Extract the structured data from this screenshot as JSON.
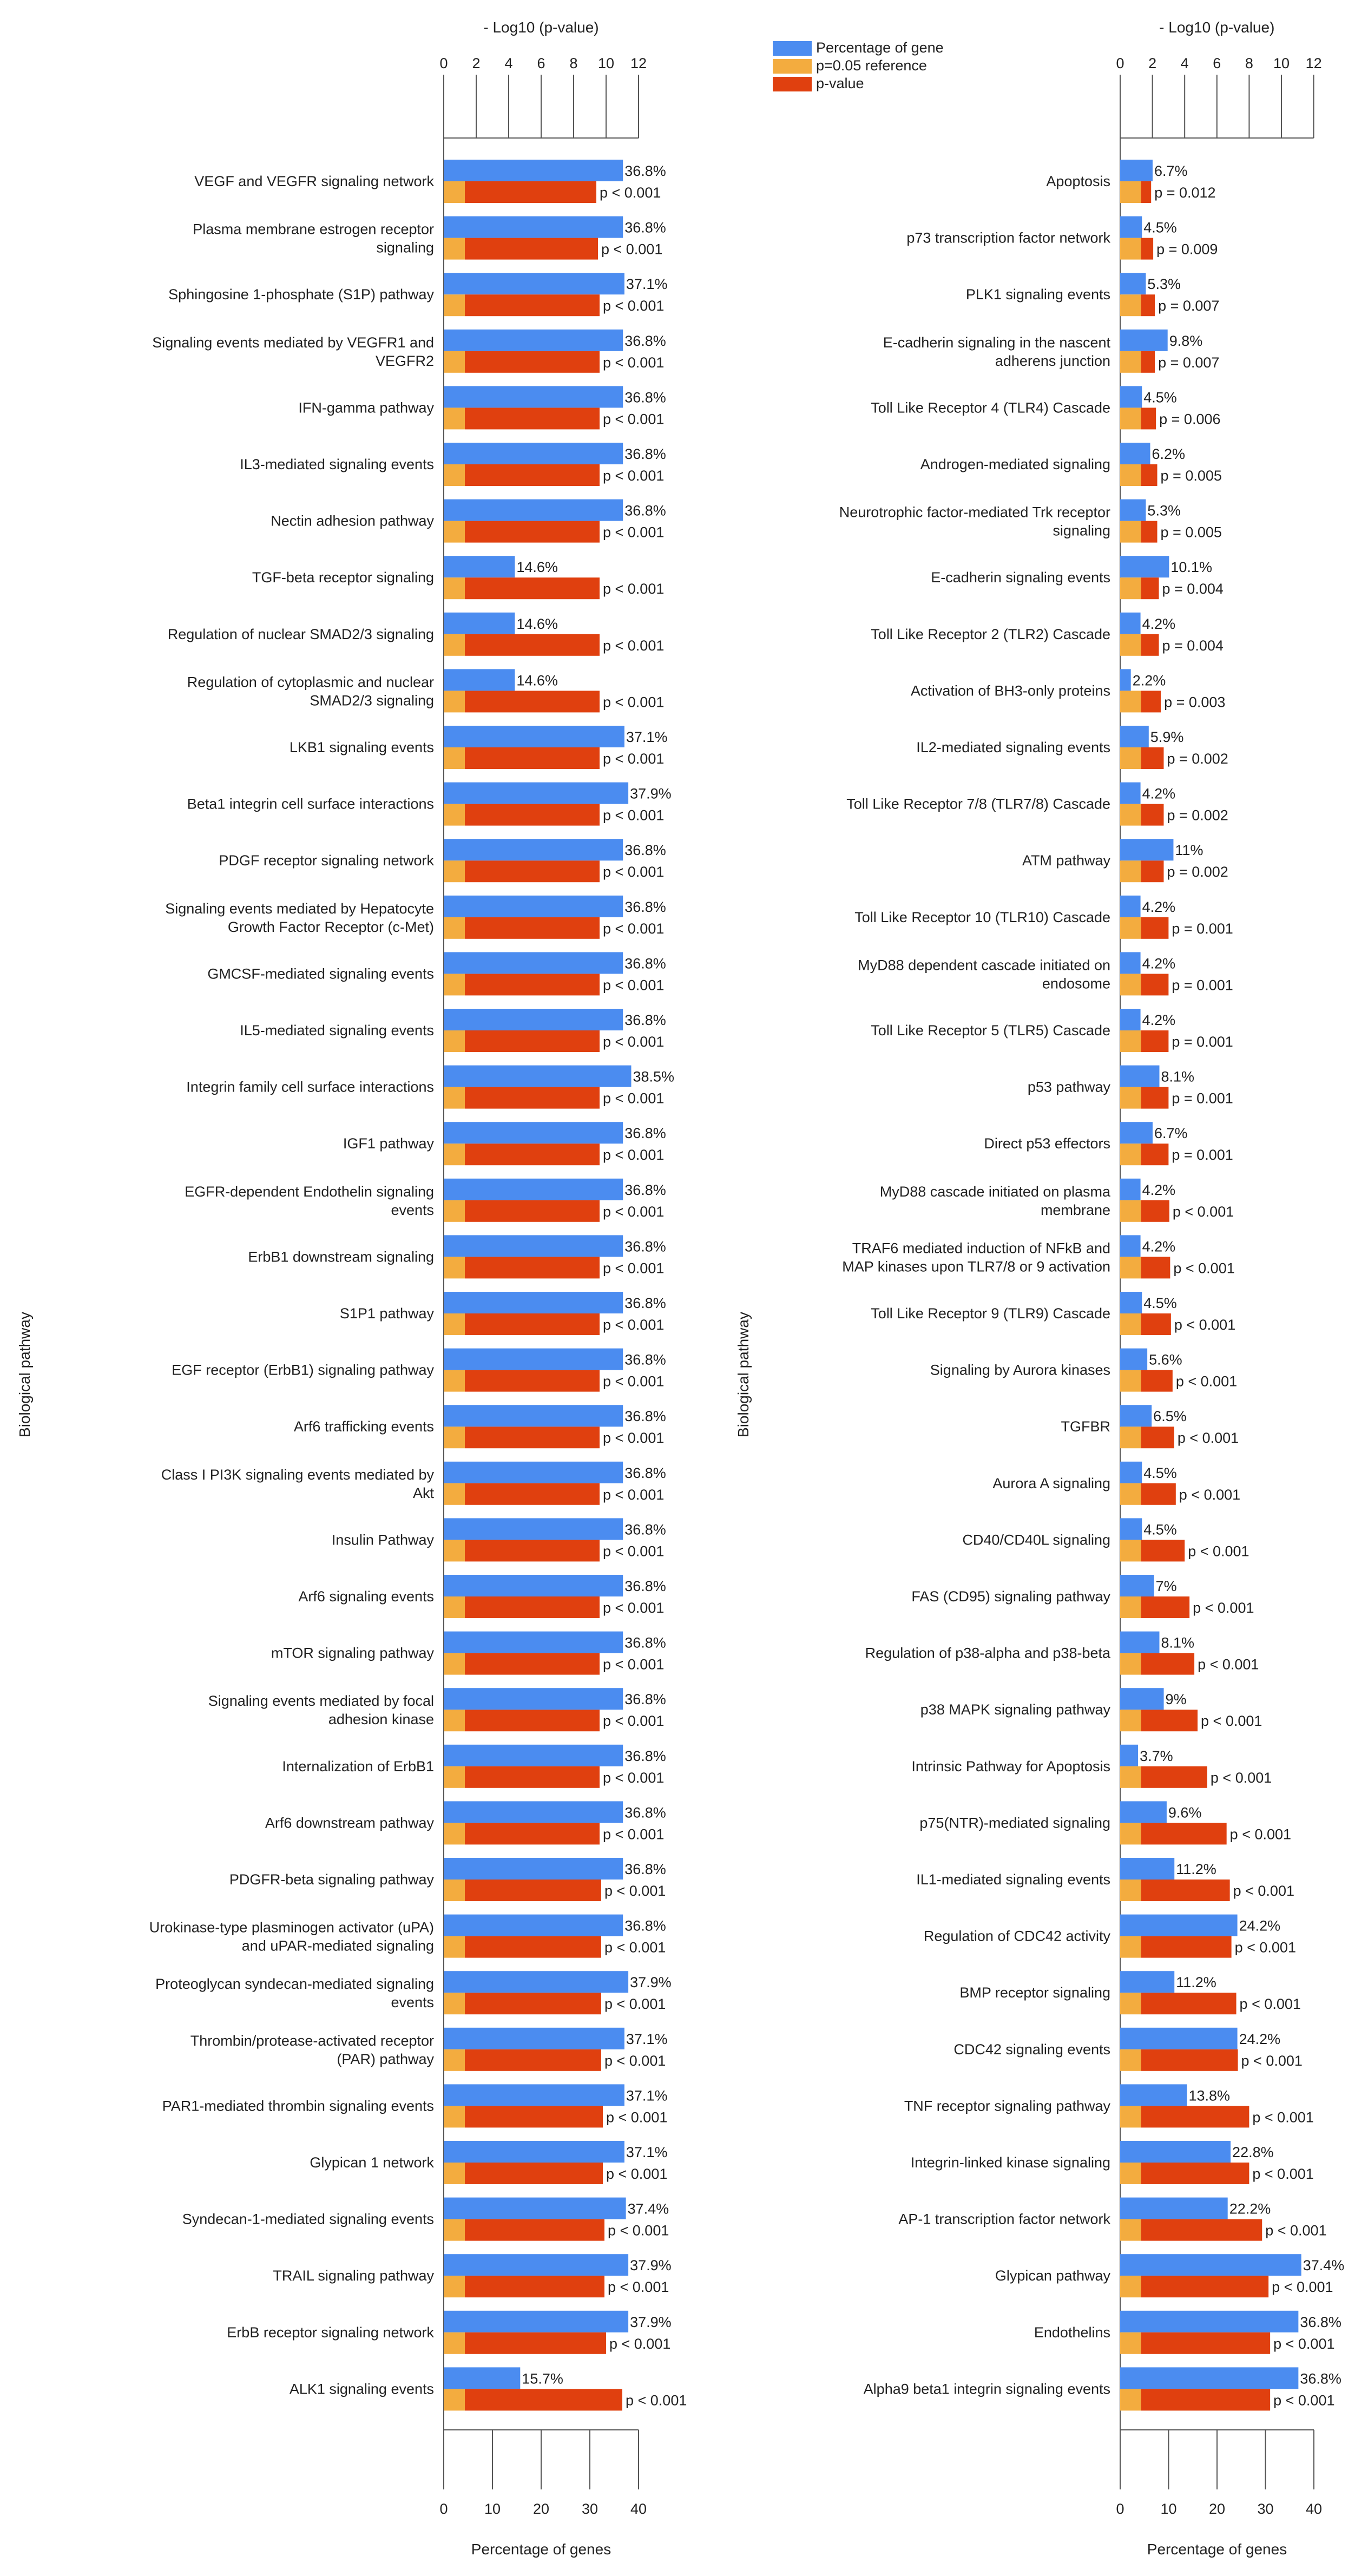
{
  "legend": {
    "items": [
      {
        "label": "Percentage of gene",
        "color": "#4b8cf0"
      },
      {
        "label": "p=0.05 reference",
        "color": "#f3ac3f"
      },
      {
        "label": "p-value",
        "color": "#e0400f"
      }
    ]
  },
  "y_axis_label": "Biological pathway",
  "chart_data": [
    {
      "type": "bar",
      "title": "",
      "top_axis_label": "- Log10 (p-value)",
      "top_axis_range": [
        0,
        12
      ],
      "top_ticks": [
        "0",
        "2",
        "4",
        "6",
        "8",
        "10",
        "12"
      ],
      "xlabel": "Percentage of genes",
      "bottom_axis_range": [
        0,
        40
      ],
      "bottom_ticks": [
        "0",
        "10",
        "20",
        "30",
        "40"
      ],
      "ylabel": "Biological pathway",
      "reference_neglog10p": 1.3,
      "categories": [
        "VEGF and VEGFR signaling network",
        "Plasma membrane estrogen receptor signaling",
        "Sphingosine 1-phosphate (S1P) pathway",
        "Signaling events mediated by VEGFR1 and VEGFR2",
        "IFN-gamma pathway",
        "IL3-mediated signaling events",
        "Nectin adhesion pathway",
        "TGF-beta receptor signaling",
        "Regulation of nuclear SMAD2/3 signaling",
        "Regulation of cytoplasmic and nuclear SMAD2/3 signaling",
        "LKB1 signaling events",
        "Beta1 integrin cell surface interactions",
        "PDGF receptor signaling network",
        "Signaling events mediated by Hepatocyte Growth Factor Receptor (c-Met)",
        "GMCSF-mediated signaling events",
        "IL5-mediated signaling events",
        "Integrin family cell surface interactions",
        "IGF1 pathway",
        "EGFR-dependent Endothelin signaling events",
        "ErbB1 downstream signaling",
        "S1P1 pathway",
        "EGF receptor (ErbB1) signaling pathway",
        "Arf6 trafficking events",
        "Class I PI3K signaling events mediated by Akt",
        "Insulin Pathway",
        "Arf6 signaling events",
        "mTOR signaling pathway",
        "Signaling events mediated by focal adhesion kinase",
        "Internalization of ErbB1",
        "Arf6 downstream pathway",
        "PDGFR-beta signaling pathway",
        "Urokinase-type plasminogen activator (uPA) and uPAR-mediated signaling",
        "Proteoglycan syndecan-mediated signaling events",
        "Thrombin/protease-activated receptor (PAR) pathway",
        "PAR1-mediated thrombin signaling events",
        "Glypican 1 network",
        "Syndecan-1-mediated signaling events",
        "TRAIL signaling pathway",
        "ErbB receptor signaling network",
        "ALK1 signaling events"
      ],
      "category_lines": [
        [
          "VEGF and VEGFR signaling network"
        ],
        [
          "Plasma membrane estrogen receptor",
          "signaling"
        ],
        [
          "Sphingosine 1-phosphate (S1P) pathway"
        ],
        [
          "Signaling events mediated by VEGFR1 and",
          "VEGFR2"
        ],
        [
          "IFN-gamma pathway"
        ],
        [
          "IL3-mediated signaling events"
        ],
        [
          "Nectin adhesion pathway"
        ],
        [
          "TGF-beta receptor signaling"
        ],
        [
          "Regulation of nuclear SMAD2/3 signaling"
        ],
        [
          "Regulation of cytoplasmic and nuclear",
          "SMAD2/3 signaling"
        ],
        [
          "LKB1 signaling events"
        ],
        [
          "Beta1 integrin cell surface interactions"
        ],
        [
          "PDGF receptor signaling network"
        ],
        [
          "Signaling events mediated by Hepatocyte",
          "Growth Factor Receptor (c-Met)"
        ],
        [
          "GMCSF-mediated signaling events"
        ],
        [
          "IL5-mediated signaling events"
        ],
        [
          "Integrin family cell surface interactions"
        ],
        [
          "IGF1 pathway"
        ],
        [
          "EGFR-dependent Endothelin signaling",
          "events"
        ],
        [
          "ErbB1 downstream signaling"
        ],
        [
          "S1P1 pathway"
        ],
        [
          "EGF receptor (ErbB1) signaling pathway"
        ],
        [
          "Arf6 trafficking events"
        ],
        [
          "Class I PI3K signaling events mediated by",
          "Akt"
        ],
        [
          "Insulin Pathway"
        ],
        [
          "Arf6 signaling events"
        ],
        [
          "mTOR signaling pathway"
        ],
        [
          "Signaling events mediated by focal",
          "adhesion kinase"
        ],
        [
          "Internalization of ErbB1"
        ],
        [
          "Arf6 downstream pathway"
        ],
        [
          "PDGFR-beta signaling pathway"
        ],
        [
          "Urokinase-type plasminogen activator (uPA)",
          "and uPAR-mediated signaling"
        ],
        [
          "Proteoglycan syndecan-mediated signaling",
          "events"
        ],
        [
          "Thrombin/protease-activated receptor",
          "(PAR) pathway"
        ],
        [
          "PAR1-mediated thrombin signaling events"
        ],
        [
          "Glypican 1 network"
        ],
        [
          "Syndecan-1-mediated signaling events"
        ],
        [
          "TRAIL signaling pathway"
        ],
        [
          "ErbB receptor signaling network"
        ],
        [
          "ALK1 signaling events"
        ]
      ],
      "series": [
        {
          "name": "Percentage of gene",
          "values": [
            36.8,
            36.8,
            37.1,
            36.8,
            36.8,
            36.8,
            36.8,
            14.6,
            14.6,
            14.6,
            37.1,
            37.9,
            36.8,
            36.8,
            36.8,
            36.8,
            38.5,
            36.8,
            36.8,
            36.8,
            36.8,
            36.8,
            36.8,
            36.8,
            36.8,
            36.8,
            36.8,
            36.8,
            36.8,
            36.8,
            36.8,
            36.8,
            37.9,
            37.1,
            37.1,
            37.1,
            37.4,
            37.9,
            37.9,
            15.7
          ],
          "labels": [
            "36.8%",
            "36.8%",
            "37.1%",
            "36.8%",
            "36.8%",
            "36.8%",
            "36.8%",
            "14.6%",
            "14.6%",
            "14.6%",
            "37.1%",
            "37.9%",
            "36.8%",
            "36.8%",
            "36.8%",
            "36.8%",
            "38.5%",
            "36.8%",
            "36.8%",
            "36.8%",
            "36.8%",
            "36.8%",
            "36.8%",
            "36.8%",
            "36.8%",
            "36.8%",
            "36.8%",
            "36.8%",
            "36.8%",
            "36.8%",
            "36.8%",
            "36.8%",
            "37.9%",
            "37.1%",
            "37.1%",
            "37.1%",
            "37.4%",
            "37.9%",
            "37.9%",
            "15.7%"
          ]
        },
        {
          "name": "p-value",
          "neglog10p": [
            9.4,
            9.5,
            9.6,
            9.6,
            9.6,
            9.6,
            9.6,
            9.6,
            9.6,
            9.6,
            9.6,
            9.6,
            9.6,
            9.6,
            9.6,
            9.6,
            9.6,
            9.6,
            9.6,
            9.6,
            9.6,
            9.6,
            9.6,
            9.6,
            9.6,
            9.6,
            9.6,
            9.6,
            9.6,
            9.6,
            9.7,
            9.7,
            9.7,
            9.7,
            9.8,
            9.8,
            9.9,
            9.9,
            10.0,
            11.0
          ],
          "labels": [
            "p < 0.001",
            "p < 0.001",
            "p < 0.001",
            "p < 0.001",
            "p < 0.001",
            "p < 0.001",
            "p < 0.001",
            "p < 0.001",
            "p < 0.001",
            "p < 0.001",
            "p < 0.001",
            "p < 0.001",
            "p < 0.001",
            "p < 0.001",
            "p < 0.001",
            "p < 0.001",
            "p < 0.001",
            "p < 0.001",
            "p < 0.001",
            "p < 0.001",
            "p < 0.001",
            "p < 0.001",
            "p < 0.001",
            "p < 0.001",
            "p < 0.001",
            "p < 0.001",
            "p < 0.001",
            "p < 0.001",
            "p < 0.001",
            "p < 0.001",
            "p < 0.001",
            "p < 0.001",
            "p < 0.001",
            "p < 0.001",
            "p < 0.001",
            "p < 0.001",
            "p < 0.001",
            "p < 0.001",
            "p < 0.001",
            "p < 0.001"
          ]
        }
      ]
    },
    {
      "type": "bar",
      "title": "",
      "top_axis_label": "- Log10 (p-value)",
      "top_axis_range": [
        0,
        12
      ],
      "top_ticks": [
        "0",
        "2",
        "4",
        "6",
        "8",
        "10",
        "12"
      ],
      "xlabel": "Percentage of genes",
      "bottom_axis_range": [
        0,
        40
      ],
      "bottom_ticks": [
        "0",
        "10",
        "20",
        "30",
        "40"
      ],
      "ylabel": "Biological pathway",
      "reference_neglog10p": 1.3,
      "categories": [
        "Apoptosis",
        "p73 transcription factor network",
        "PLK1 signaling events",
        "E-cadherin signaling in the nascent adherens junction",
        "Toll Like Receptor 4 (TLR4) Cascade",
        "Androgen-mediated signaling",
        "Neurotrophic factor-mediated Trk receptor signaling",
        "E-cadherin signaling events",
        "Toll Like Receptor 2 (TLR2) Cascade",
        "Activation of BH3-only proteins",
        "IL2-mediated signaling events",
        "Toll Like Receptor 7/8 (TLR7/8) Cascade",
        "ATM pathway",
        "Toll Like Receptor 10 (TLR10) Cascade",
        "MyD88 dependent cascade initiated on endosome",
        "Toll Like Receptor 5 (TLR5) Cascade",
        "p53 pathway",
        "Direct p53 effectors",
        "MyD88 cascade initiated on plasma membrane",
        "TRAF6 mediated induction of NFkB and MAP kinases upon TLR7/8 or 9 activation",
        "Toll Like Receptor 9 (TLR9) Cascade",
        "Signaling by Aurora kinases",
        "TGFBR",
        "Aurora A signaling",
        "CD40/CD40L signaling",
        "FAS (CD95) signaling pathway",
        "Regulation of p38-alpha and p38-beta",
        "p38 MAPK signaling pathway",
        "Intrinsic Pathway for Apoptosis",
        "p75(NTR)-mediated signaling",
        "IL1-mediated signaling events",
        "Regulation of CDC42 activity",
        "BMP receptor signaling",
        "CDC42 signaling events",
        "TNF receptor signaling pathway",
        "Integrin-linked kinase signaling",
        "AP-1 transcription factor network",
        "Glypican pathway",
        "Endothelins",
        "Alpha9 beta1 integrin signaling events"
      ],
      "category_lines": [
        [
          "Apoptosis"
        ],
        [
          "p73 transcription factor network"
        ],
        [
          "PLK1 signaling events"
        ],
        [
          "E-cadherin signaling in the nascent",
          "adherens junction"
        ],
        [
          "Toll Like Receptor 4 (TLR4) Cascade"
        ],
        [
          "Androgen-mediated signaling"
        ],
        [
          "Neurotrophic factor-mediated Trk receptor",
          "signaling"
        ],
        [
          "E-cadherin signaling events"
        ],
        [
          "Toll Like Receptor 2 (TLR2) Cascade"
        ],
        [
          "Activation of BH3-only proteins"
        ],
        [
          "IL2-mediated signaling events"
        ],
        [
          "Toll Like Receptor 7/8 (TLR7/8) Cascade"
        ],
        [
          "ATM pathway"
        ],
        [
          "Toll Like Receptor 10 (TLR10) Cascade"
        ],
        [
          "MyD88 dependent cascade initiated on",
          "endosome"
        ],
        [
          "Toll Like Receptor 5 (TLR5) Cascade"
        ],
        [
          "p53 pathway"
        ],
        [
          "Direct p53 effectors"
        ],
        [
          "MyD88 cascade initiated on plasma",
          "membrane"
        ],
        [
          "TRAF6 mediated induction of NFkB and",
          "MAP kinases upon TLR7/8 or 9 activation"
        ],
        [
          "Toll Like Receptor 9 (TLR9) Cascade"
        ],
        [
          "Signaling by Aurora kinases"
        ],
        [
          "TGFBR"
        ],
        [
          "Aurora A signaling"
        ],
        [
          "CD40/CD40L signaling"
        ],
        [
          "FAS (CD95) signaling pathway"
        ],
        [
          "Regulation of p38-alpha and p38-beta"
        ],
        [
          "p38 MAPK signaling pathway"
        ],
        [
          "Intrinsic Pathway for Apoptosis"
        ],
        [
          "p75(NTR)-mediated signaling"
        ],
        [
          "IL1-mediated signaling events"
        ],
        [
          "Regulation of CDC42 activity"
        ],
        [
          "BMP receptor signaling"
        ],
        [
          "CDC42 signaling events"
        ],
        [
          "TNF receptor signaling pathway"
        ],
        [
          "Integrin-linked kinase signaling"
        ],
        [
          "AP-1 transcription factor network"
        ],
        [
          "Glypican pathway"
        ],
        [
          "Endothelins"
        ],
        [
          "Alpha9 beta1 integrin signaling events"
        ]
      ],
      "series": [
        {
          "name": "Percentage of gene",
          "values": [
            6.7,
            4.5,
            5.3,
            9.8,
            4.5,
            6.2,
            5.3,
            10.1,
            4.2,
            2.2,
            5.9,
            4.2,
            11,
            4.2,
            4.2,
            4.2,
            8.1,
            6.7,
            4.2,
            4.2,
            4.5,
            5.6,
            6.5,
            4.5,
            4.5,
            7,
            8.1,
            9,
            3.7,
            9.6,
            11.2,
            24.2,
            11.2,
            24.2,
            13.8,
            22.8,
            22.2,
            37.4,
            36.8,
            36.8
          ],
          "labels": [
            "6.7%",
            "4.5%",
            "5.3%",
            "9.8%",
            "4.5%",
            "6.2%",
            "5.3%",
            "10.1%",
            "4.2%",
            "2.2%",
            "5.9%",
            "4.2%",
            "11%",
            "4.2%",
            "4.2%",
            "4.2%",
            "8.1%",
            "6.7%",
            "4.2%",
            "4.2%",
            "4.5%",
            "5.6%",
            "6.5%",
            "4.5%",
            "4.5%",
            "7%",
            "8.1%",
            "9%",
            "3.7%",
            "9.6%",
            "11.2%",
            "24.2%",
            "11.2%",
            "24.2%",
            "13.8%",
            "22.8%",
            "22.2%",
            "37.4%",
            "36.8%",
            "36.8%"
          ]
        },
        {
          "name": "p-value",
          "neglog10p": [
            1.92,
            2.05,
            2.15,
            2.15,
            2.22,
            2.3,
            2.3,
            2.4,
            2.4,
            2.52,
            2.7,
            2.7,
            2.7,
            3.0,
            3.0,
            3.0,
            3.0,
            3.0,
            3.05,
            3.1,
            3.15,
            3.25,
            3.35,
            3.45,
            4.0,
            4.3,
            4.6,
            4.8,
            5.4,
            6.6,
            6.8,
            6.9,
            7.2,
            7.3,
            8.0,
            8.0,
            8.8,
            9.2,
            9.3,
            9.3
          ],
          "labels": [
            "p = 0.012",
            "p = 0.009",
            "p = 0.007",
            "p = 0.007",
            "p = 0.006",
            "p = 0.005",
            "p = 0.005",
            "p = 0.004",
            "p = 0.004",
            "p = 0.003",
            "p = 0.002",
            "p = 0.002",
            "p = 0.002",
            "p = 0.001",
            "p = 0.001",
            "p = 0.001",
            "p = 0.001",
            "p = 0.001",
            "p < 0.001",
            "p < 0.001",
            "p < 0.001",
            "p < 0.001",
            "p < 0.001",
            "p < 0.001",
            "p < 0.001",
            "p < 0.001",
            "p < 0.001",
            "p < 0.001",
            "p < 0.001",
            "p < 0.001",
            "p < 0.001",
            "p < 0.001",
            "p < 0.001",
            "p < 0.001",
            "p < 0.001",
            "p < 0.001",
            "p < 0.001",
            "p < 0.001",
            "p < 0.001",
            "p < 0.001"
          ]
        }
      ]
    }
  ]
}
